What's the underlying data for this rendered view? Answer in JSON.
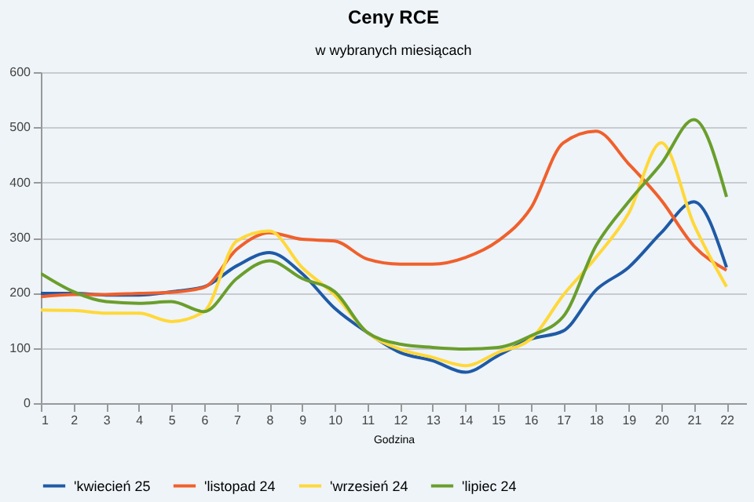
{
  "chart_data": {
    "type": "line",
    "title": "Ceny RCE",
    "subtitle": "w wybranych miesiącach",
    "xlabel": "Godzina",
    "x": [
      1,
      2,
      3,
      4,
      5,
      6,
      7,
      8,
      9,
      10,
      11,
      12,
      13,
      14,
      15,
      16,
      17,
      18,
      19,
      20,
      21,
      22
    ],
    "xlim": [
      1,
      22.6
    ],
    "xticks": [
      1,
      2,
      3,
      4,
      5,
      6,
      7,
      8,
      9,
      10,
      11,
      12,
      13,
      14,
      15,
      16,
      17,
      18,
      19,
      20,
      21,
      22
    ],
    "ylim": [
      0,
      600
    ],
    "yticks": [
      0,
      100,
      200,
      300,
      400,
      500,
      600
    ],
    "series": [
      {
        "name": "'kwiecień 25",
        "color": "#1f5aa6",
        "values": [
          199,
          199,
          196,
          196,
          202,
          211,
          249,
          273,
          235,
          172,
          128,
          92,
          77,
          56,
          86,
          116,
          131,
          205,
          246,
          309,
          365,
          246
        ]
      },
      {
        "name": "'listopad 24",
        "color": "#f0602c",
        "values": [
          193,
          197,
          197,
          199,
          201,
          210,
          279,
          309,
          297,
          294,
          261,
          252,
          252,
          264,
          294,
          353,
          472,
          493,
          434,
          368,
          285,
          241
        ]
      },
      {
        "name": "'wrzesień 24",
        "color": "#ffd83a",
        "values": [
          169,
          168,
          163,
          163,
          148,
          166,
          294,
          312,
          246,
          196,
          128,
          98,
          83,
          68,
          92,
          116,
          196,
          264,
          344,
          472,
          324,
          211
        ]
      },
      {
        "name": "'lipiec 24",
        "color": "#6a9e2c",
        "values": [
          235,
          202,
          184,
          181,
          184,
          166,
          226,
          258,
          226,
          202,
          128,
          107,
          101,
          98,
          101,
          122,
          157,
          285,
          365,
          434,
          514,
          374
        ]
      }
    ],
    "grid": "y",
    "legend": "bottom",
    "marker": "none",
    "line_style": "solid"
  }
}
